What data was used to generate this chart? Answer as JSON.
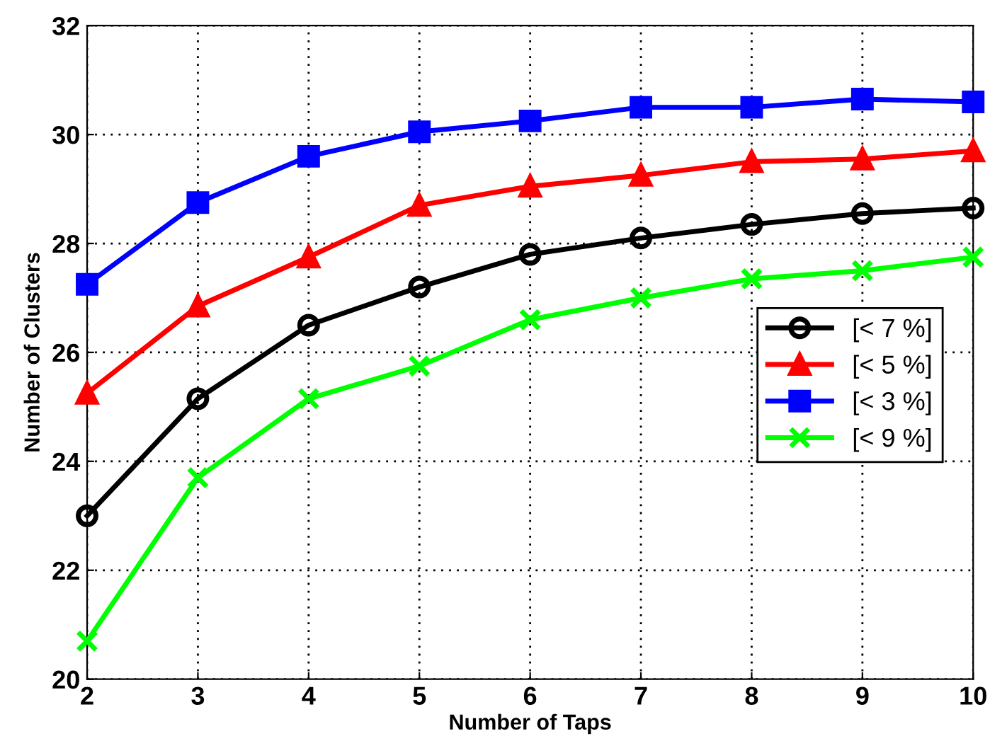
{
  "chart_data": {
    "type": "line",
    "xlabel": "Number of Taps",
    "ylabel": "Number of Clusters",
    "x": [
      2,
      3,
      4,
      5,
      6,
      7,
      8,
      9,
      10
    ],
    "series": [
      {
        "name": "[< 7 %]",
        "color": "#000000",
        "marker": "circle",
        "values": [
          23.0,
          25.15,
          26.5,
          27.2,
          27.8,
          28.1,
          28.35,
          28.55,
          28.65
        ]
      },
      {
        "name": "[< 5 %]",
        "color": "#ff0000",
        "marker": "triangle",
        "values": [
          25.25,
          26.85,
          27.75,
          28.7,
          29.05,
          29.25,
          29.5,
          29.55,
          29.7
        ]
      },
      {
        "name": "[< 3 %]",
        "color": "#0000ff",
        "marker": "square",
        "values": [
          27.25,
          28.75,
          29.6,
          30.05,
          30.25,
          30.5,
          30.5,
          30.65,
          30.6
        ]
      },
      {
        "name": "[< 9 %]",
        "color": "#00ff00",
        "marker": "cross",
        "values": [
          20.7,
          23.7,
          25.15,
          25.75,
          26.6,
          27.0,
          27.35,
          27.5,
          27.75
        ]
      }
    ],
    "xlim": [
      2,
      10
    ],
    "xticks": [
      2,
      3,
      4,
      5,
      6,
      7,
      8,
      9,
      10
    ],
    "ylim": [
      20,
      32
    ],
    "yticks": [
      20,
      22,
      24,
      26,
      28,
      30,
      32
    ],
    "grid": true,
    "legend": "right",
    "line_style": "solid"
  }
}
